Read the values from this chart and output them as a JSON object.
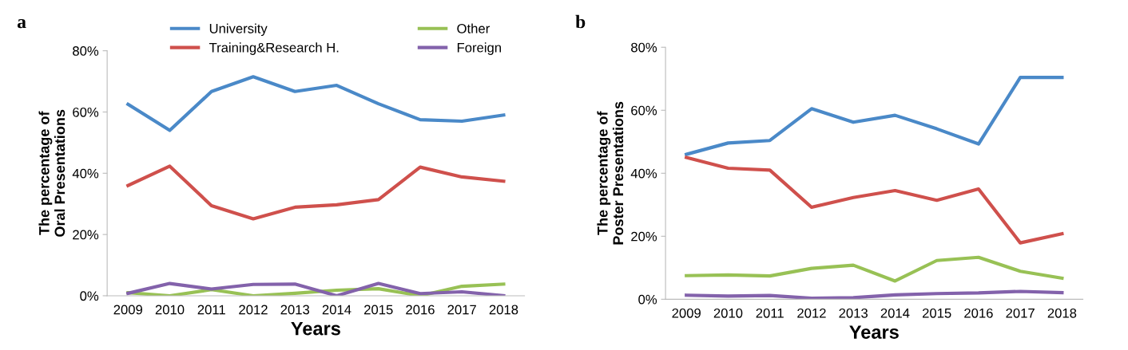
{
  "chart_data": [
    {
      "type": "line",
      "annotations": [
        "a"
      ],
      "xlabel": "Years",
      "ylabel": "The percentage of\nOral Presentations",
      "categories": [
        "2009",
        "2010",
        "2011",
        "2012",
        "2013",
        "2014",
        "2015",
        "2016",
        "2017",
        "2018"
      ],
      "ylim": [
        0,
        80
      ],
      "yticks": [
        {
          "value": 0,
          "label": "0%"
        },
        {
          "value": 20,
          "label": "20%"
        },
        {
          "value": 40,
          "label": "40%"
        },
        {
          "value": 60,
          "label": "60%"
        },
        {
          "value": 80,
          "label": "80%"
        }
      ],
      "grid": false,
      "legend": "top",
      "marker": "none",
      "line_style": "solid",
      "series": [
        {
          "name": "University",
          "color": "#4a89c8",
          "values": [
            62.5,
            54,
            66.7,
            71.5,
            66.7,
            68.7,
            62.7,
            57.5,
            57,
            59
          ]
        },
        {
          "name": "Training&Research H.",
          "color": "#cf504c",
          "values": [
            36,
            42.3,
            29.4,
            25.1,
            28.9,
            29.7,
            31.4,
            42,
            38.8,
            37.4
          ]
        },
        {
          "name": "Other",
          "color": "#98c155",
          "values": [
            1,
            0,
            2,
            0,
            0.8,
            1.8,
            2.3,
            0,
            3.1,
            3.8
          ]
        },
        {
          "name": "Foreign",
          "color": "#8362ab",
          "values": [
            0.8,
            4,
            2.2,
            3.7,
            3.8,
            0,
            4,
            0.7,
            1.3,
            0
          ]
        }
      ]
    },
    {
      "type": "line",
      "annotations": [
        "b"
      ],
      "xlabel": "Years",
      "ylabel": "The percentage of\nPoster Presentations",
      "categories": [
        "2009",
        "2010",
        "2011",
        "2012",
        "2013",
        "2014",
        "2015",
        "2016",
        "2017",
        "2018"
      ],
      "ylim": [
        0,
        80
      ],
      "yticks": [
        {
          "value": 0,
          "label": "0%"
        },
        {
          "value": 20,
          "label": "20%"
        },
        {
          "value": 40,
          "label": "40%"
        },
        {
          "value": 60,
          "label": "60%"
        },
        {
          "value": 80,
          "label": "80%"
        }
      ],
      "grid": false,
      "marker": "none",
      "line_style": "solid",
      "series": [
        {
          "color": "#4a89c8",
          "values": [
            46,
            49.6,
            50.4,
            60.5,
            56.2,
            58.4,
            54.1,
            49.3,
            70.4,
            70.4
          ]
        },
        {
          "color": "#cf504c",
          "values": [
            45,
            41.6,
            41,
            29.2,
            32.3,
            34.5,
            31.4,
            35,
            17.9,
            20.8
          ]
        },
        {
          "color": "#98c155",
          "values": [
            7.5,
            7.7,
            7.4,
            9.8,
            10.8,
            5.8,
            12.3,
            13.3,
            8.9,
            6.7
          ]
        },
        {
          "color": "#8362ab",
          "values": [
            1.3,
            1,
            1.2,
            0.3,
            0.5,
            1.4,
            1.8,
            2,
            2.5,
            2.1
          ]
        }
      ]
    }
  ]
}
